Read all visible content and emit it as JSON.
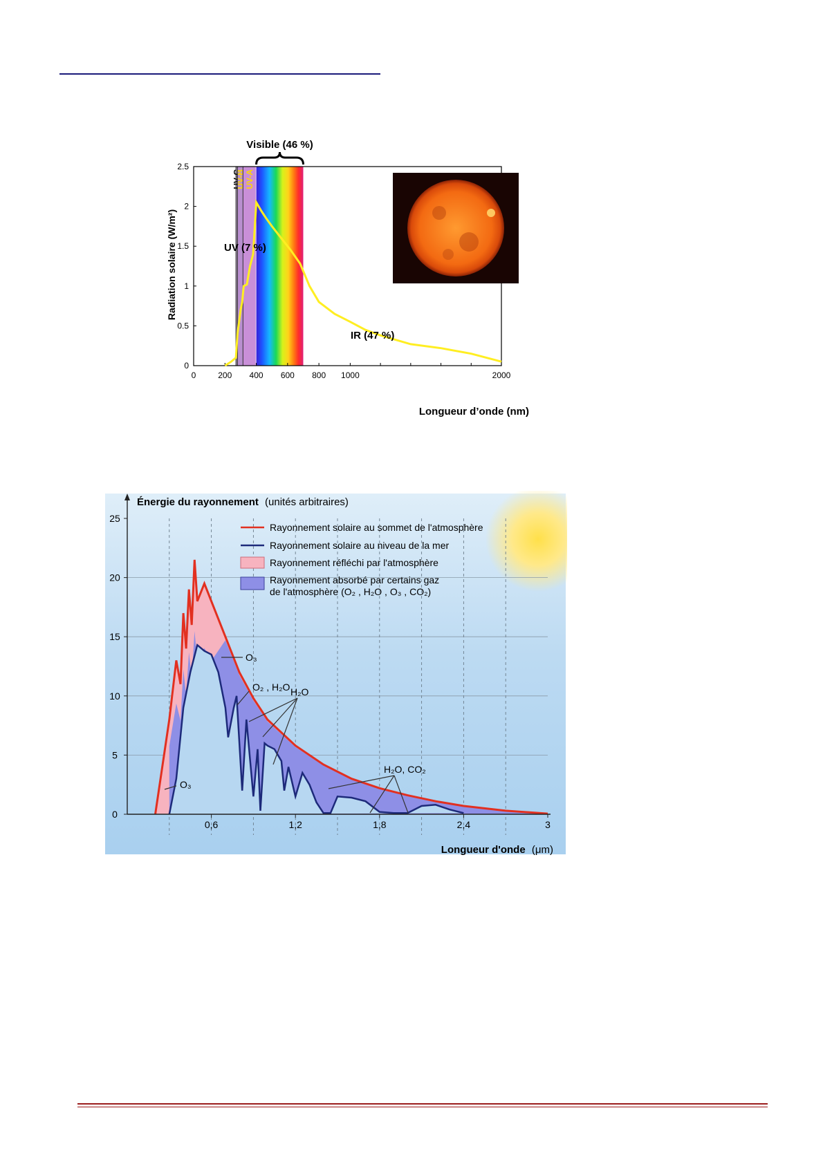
{
  "chart_data": [
    {
      "type": "line",
      "title": "",
      "xlabel": "Longueur d’onde (nm)",
      "ylabel": "Radiation solaire (W/m²)",
      "ylim": [
        0,
        2.5
      ],
      "x_ticks": [
        "0",
        "200",
        "400",
        "600",
        "800",
        "1000",
        "2000"
      ],
      "y_ticks": [
        "0",
        "0.5",
        "1",
        "1.5",
        "2",
        "2.5"
      ],
      "bands": [
        {
          "label": "UV-C",
          "from": 270,
          "to": 280,
          "color": "#9b8aa6"
        },
        {
          "label": "UV-B",
          "from": 280,
          "to": 315,
          "color": "#b98fd0"
        },
        {
          "label": "UV-A",
          "from": 315,
          "to": 400,
          "color": "#c98fd8"
        }
      ],
      "annotations": [
        "Visible (46 %)",
        "UV (7 %)",
        "IR (47 %)"
      ],
      "series": [
        {
          "color": "#ffee22",
          "x": [
            200,
            240,
            270,
            280,
            290,
            300,
            310,
            320,
            340,
            360,
            380,
            400,
            430,
            460,
            500,
            560,
            620,
            680,
            740,
            800,
            900,
            1000,
            1100,
            1200,
            1400,
            1600,
            1800,
            2000
          ],
          "y": [
            0,
            0.05,
            0.1,
            0.4,
            0.55,
            0.7,
            0.8,
            1.0,
            1.02,
            1.25,
            1.4,
            2.05,
            1.95,
            1.86,
            1.75,
            1.6,
            1.45,
            1.28,
            1.0,
            0.8,
            0.65,
            0.55,
            0.45,
            0.38,
            0.27,
            0.22,
            0.15,
            0.05
          ]
        }
      ]
    },
    {
      "type": "area",
      "title": "Énergie du rayonnement",
      "title_note": "(unités arbitraires)",
      "xlabel": "Longueur d'onde",
      "xunit": "(μm)",
      "ylim": [
        0,
        25
      ],
      "xlim": [
        0,
        3
      ],
      "y_ticks": [
        "0",
        "5",
        "10",
        "15",
        "20",
        "25"
      ],
      "x_ticks": [
        {
          "v": 0.6,
          "t": "0,6"
        },
        {
          "v": 1.2,
          "t": "1,2"
        },
        {
          "v": 1.8,
          "t": "1,8"
        },
        {
          "v": 2.4,
          "t": "2,4"
        },
        {
          "v": 3,
          "t": "3"
        }
      ],
      "legend": [
        "Rayonnement solaire au sommet de l'atmosphère",
        "Rayonnement solaire au niveau de la mer",
        "Rayonnement réfléchi par l'atmosphère",
        "Rayonnement absorbé par certains gaz",
        "de l'atmosphère (O₂ , H₂O , O₃ , CO₂)"
      ],
      "labels": [
        "O₃",
        "O₂ , H₂O",
        "H₂O",
        "H₂O, CO₂",
        "O₃"
      ],
      "series": [
        {
          "name": "Rayonnement solaire au sommet de l'atmosphère",
          "color": "#e23020",
          "x": [
            0.2,
            0.3,
            0.35,
            0.38,
            0.4,
            0.42,
            0.44,
            0.46,
            0.48,
            0.5,
            0.55,
            0.6,
            0.7,
            0.8,
            0.9,
            1.0,
            1.2,
            1.4,
            1.6,
            1.8,
            2.0,
            2.2,
            2.4,
            2.7,
            3.0
          ],
          "y": [
            0,
            8,
            13,
            11,
            17,
            14,
            19,
            16,
            21.5,
            18,
            19.5,
            18,
            15,
            12,
            9.8,
            8,
            5.8,
            4.2,
            3,
            2.2,
            1.6,
            1.1,
            0.7,
            0.3,
            0.05
          ]
        },
        {
          "name": "Rayonnement solaire au niveau de la mer",
          "color": "#1d2a7a",
          "x": [
            0.3,
            0.35,
            0.4,
            0.45,
            0.5,
            0.55,
            0.6,
            0.65,
            0.7,
            0.72,
            0.76,
            0.78,
            0.82,
            0.85,
            0.9,
            0.93,
            0.95,
            0.98,
            1.0,
            1.05,
            1.1,
            1.12,
            1.15,
            1.2,
            1.25,
            1.3,
            1.35,
            1.4,
            1.45,
            1.5,
            1.6,
            1.7,
            1.8,
            1.9,
            2.0,
            2.1,
            2.2,
            2.3,
            2.4
          ],
          "y": [
            0,
            3,
            9,
            12,
            14.3,
            13.8,
            13.5,
            12,
            9,
            6.5,
            9,
            10,
            2,
            8,
            1.5,
            5.5,
            0.3,
            6,
            5.8,
            5.5,
            4.5,
            2.0,
            4,
            1.5,
            3.5,
            2.5,
            1,
            0.1,
            0.1,
            1.5,
            1.4,
            1.1,
            0.2,
            0.1,
            0.1,
            0.7,
            0.8,
            0.4,
            0.1
          ]
        }
      ]
    }
  ]
}
